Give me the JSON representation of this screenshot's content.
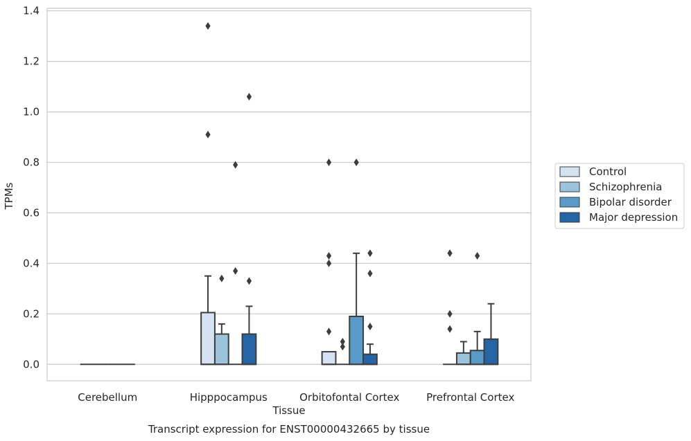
{
  "chart_data": {
    "type": "box",
    "title": "",
    "xlabel": "Tissue",
    "ylabel": "TPMs",
    "caption": "Transcript expression for ENST00000432665 by tissue",
    "ylim": [
      -0.065,
      1.41
    ],
    "yticks": [
      "0.0",
      "0.2",
      "0.4",
      "0.6",
      "0.8",
      "1.0",
      "1.2",
      "1.4"
    ],
    "grid": "horizontal",
    "legend_position": "right",
    "categories": [
      "Cerebellum",
      "Hipppocampus",
      "Orbitofontal Cortex",
      "Prefrontal Cortex"
    ],
    "series": [
      {
        "name": "Control",
        "color": "#d4e2f1",
        "boxes": [
          {
            "q1": 0,
            "q3": 0,
            "median": 0,
            "whisker_low": 0,
            "whisker_high": 0,
            "outliers": []
          },
          {
            "q1": 0,
            "q3": 0.205,
            "median": 0,
            "whisker_low": 0,
            "whisker_high": 0.35,
            "outliers": [
              0.91,
              1.34
            ]
          },
          {
            "q1": 0,
            "q3": 0.05,
            "median": 0,
            "whisker_low": 0,
            "whisker_high": 0.05,
            "outliers": [
              0.13,
              0.4,
              0.43,
              0.8
            ]
          },
          {
            "q1": 0,
            "q3": 0,
            "median": 0,
            "whisker_low": 0,
            "whisker_high": 0,
            "outliers": [
              0.14,
              0.2,
              0.44
            ]
          }
        ]
      },
      {
        "name": "Schizophrenia",
        "color": "#9cc2dc",
        "boxes": [
          {
            "q1": 0,
            "q3": 0,
            "median": 0,
            "whisker_low": 0,
            "whisker_high": 0,
            "outliers": []
          },
          {
            "q1": 0,
            "q3": 0.12,
            "median": 0,
            "whisker_low": 0,
            "whisker_high": 0.16,
            "outliers": [
              0.34
            ]
          },
          {
            "q1": 0,
            "q3": 0,
            "median": 0,
            "whisker_low": 0,
            "whisker_high": 0,
            "outliers": [
              0.07,
              0.09
            ]
          },
          {
            "q1": 0,
            "q3": 0.045,
            "median": 0,
            "whisker_low": 0,
            "whisker_high": 0.09,
            "outliers": []
          }
        ]
      },
      {
        "name": "Bipolar disorder",
        "color": "#5a9ac8",
        "boxes": [
          {
            "q1": 0,
            "q3": 0,
            "median": 0,
            "whisker_low": 0,
            "whisker_high": 0,
            "outliers": []
          },
          {
            "q1": 0,
            "q3": 0,
            "median": 0,
            "whisker_low": 0,
            "whisker_high": 0,
            "outliers": [
              0.37,
              0.79
            ]
          },
          {
            "q1": 0,
            "q3": 0.19,
            "median": 0,
            "whisker_low": 0,
            "whisker_high": 0.44,
            "outliers": [
              0.8
            ]
          },
          {
            "q1": 0,
            "q3": 0.055,
            "median": 0,
            "whisker_low": 0,
            "whisker_high": 0.13,
            "outliers": [
              0.43
            ]
          }
        ]
      },
      {
        "name": "Major depression",
        "color": "#2565a5",
        "boxes": [
          {
            "q1": 0,
            "q3": 0,
            "median": 0,
            "whisker_low": 0,
            "whisker_high": 0,
            "outliers": []
          },
          {
            "q1": 0,
            "q3": 0.12,
            "median": 0,
            "whisker_low": 0,
            "whisker_high": 0.23,
            "outliers": [
              0.33,
              1.06
            ]
          },
          {
            "q1": 0,
            "q3": 0.04,
            "median": 0,
            "whisker_low": 0,
            "whisker_high": 0.08,
            "outliers": [
              0.15,
              0.36,
              0.44
            ]
          },
          {
            "q1": 0,
            "q3": 0.1,
            "median": 0,
            "whisker_low": 0,
            "whisker_high": 0.24,
            "outliers": []
          }
        ]
      }
    ]
  }
}
